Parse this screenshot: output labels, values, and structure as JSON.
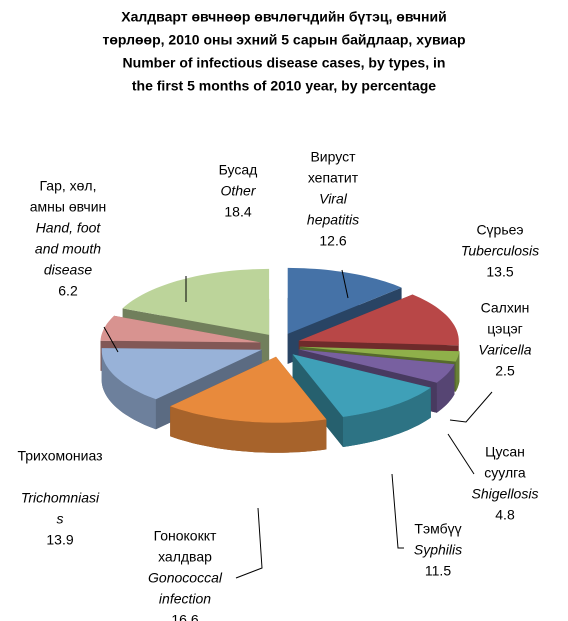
{
  "chart_data": {
    "type": "pie3d",
    "title": [
      "Халдварт өвчнөөр өвчлөгчдийн бүтэц, өвчний",
      "төрлөөр, 2010 оны эхний 5 сарын байдлаар, хувиар",
      "Number of infectious disease cases, by types,  in",
      "the first 5 months  of  2010 year, by percentage"
    ],
    "categories": [
      {
        "mn": [
          "Вируст",
          "хепатит"
        ],
        "en": [
          "Viral",
          "hepatitis"
        ]
      },
      {
        "mn": [
          "Сүрьеэ"
        ],
        "en": [
          "Tuberculosis"
        ]
      },
      {
        "mn": [
          "Салхин",
          "цэцэг"
        ],
        "en": [
          "Varicella"
        ]
      },
      {
        "mn": [
          "Цусан",
          "суулга"
        ],
        "en": [
          "Shigellosis"
        ]
      },
      {
        "mn": [
          "Тэмбүү"
        ],
        "en": [
          "Syphilis"
        ]
      },
      {
        "mn": [
          "Гонококкт",
          "халдвар"
        ],
        "en": [
          "Gonococcal",
          "infection"
        ]
      },
      {
        "mn": [
          "Трихомониаз"
        ],
        "en": [
          "Trichomniasi",
          "s"
        ]
      },
      {
        "mn": [
          "Гар, хөл,",
          "амны өвчин"
        ],
        "en": [
          "Hand, foot",
          "and mouth",
          "disease"
        ]
      },
      {
        "mn": [
          "Бусад"
        ],
        "en": [
          "Other"
        ]
      }
    ],
    "values": [
      12.6,
      13.5,
      2.5,
      4.8,
      11.5,
      16.6,
      13.9,
      6.2,
      18.4
    ],
    "colors": [
      "#4572a7",
      "#b84747",
      "#8fb04a",
      "#7860a0",
      "#3fa0b8",
      "#e88a3c",
      "#98b2d8",
      "#d89390",
      "#bcd49a"
    ]
  }
}
